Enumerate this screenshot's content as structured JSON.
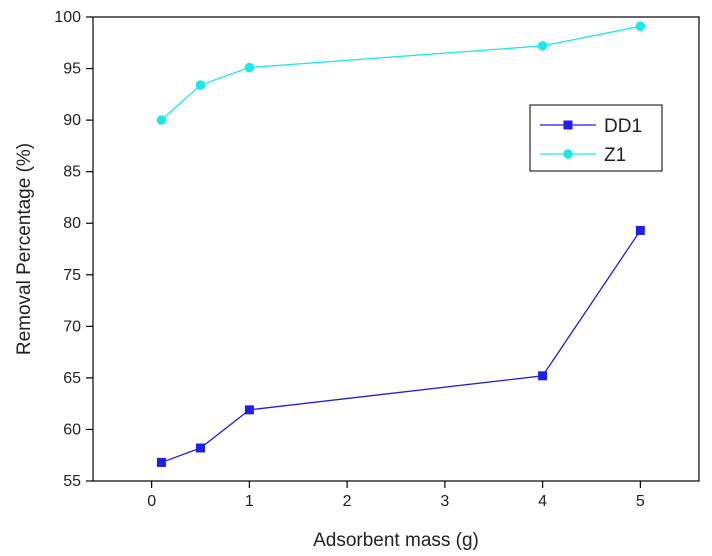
{
  "chart_data": {
    "type": "line",
    "title": "",
    "xlabel": "Adsorbent mass (g)",
    "ylabel": "Removal Percentage (%)",
    "xlim": [
      -0.6,
      5.6
    ],
    "ylim": [
      55,
      100
    ],
    "x_ticks": [
      0,
      1,
      2,
      3,
      4,
      5
    ],
    "y_ticks": [
      55,
      60,
      65,
      70,
      75,
      80,
      85,
      90,
      95,
      100
    ],
    "grid": false,
    "legend": "upper-right inside plot",
    "series": [
      {
        "name": "DD1",
        "marker": "square",
        "color": "#1f1fe6",
        "x": [
          0.1,
          0.5,
          1,
          4,
          5
        ],
        "y": [
          56.8,
          58.2,
          61.9,
          65.2,
          79.3
        ]
      },
      {
        "name": "Z1",
        "marker": "circle",
        "color": "#1de8e8",
        "x": [
          0.1,
          0.5,
          1,
          4,
          5
        ],
        "y": [
          90.0,
          93.4,
          95.1,
          97.2,
          99.1
        ]
      }
    ]
  }
}
